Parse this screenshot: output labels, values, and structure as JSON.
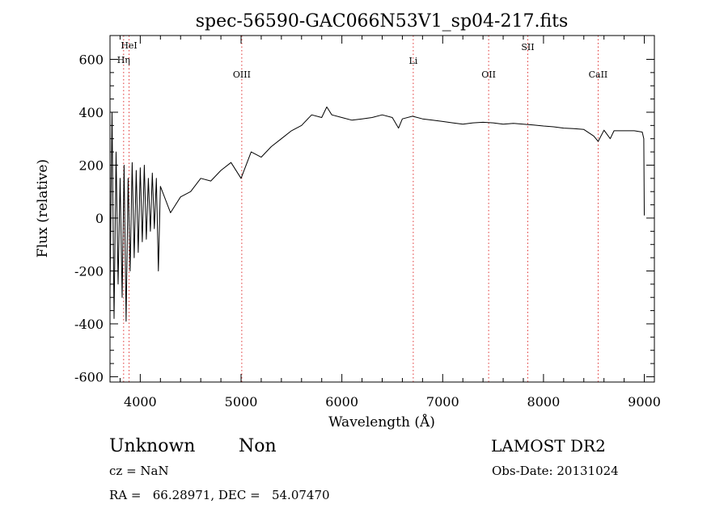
{
  "chart_data": {
    "type": "line",
    "title": "spec-56590-GAC066N53V1_sp04-217.fits",
    "xlabel": "Wavelength (Å)",
    "ylabel": "Flux (relative)",
    "xlim": [
      3700,
      9100
    ],
    "ylim": [
      -620,
      690
    ],
    "xticks": [
      4000,
      5000,
      6000,
      7000,
      8000,
      9000
    ],
    "yticks": [
      -600,
      -400,
      -200,
      0,
      200,
      400,
      600
    ],
    "grid": false,
    "series": [
      {
        "x": [
          3700,
          3720,
          3740,
          3760,
          3780,
          3800,
          3820,
          3840,
          3860,
          3880,
          3900,
          3920,
          3940,
          3960,
          3980,
          4000,
          4020,
          4040,
          4060,
          4080,
          4100,
          4120,
          4140,
          4160,
          4180,
          4200,
          4300,
          4400,
          4500,
          4600,
          4700,
          4800,
          4900,
          5000,
          5100,
          5200,
          5300,
          5400,
          5500,
          5600,
          5700,
          5800,
          5850,
          5900,
          6000,
          6100,
          6200,
          6300,
          6400,
          6500,
          6562,
          6600,
          6700,
          6800,
          6900,
          7000,
          7100,
          7200,
          7300,
          7400,
          7500,
          7600,
          7700,
          7800,
          7900,
          8000,
          8100,
          8200,
          8300,
          8400,
          8498,
          8542,
          8600,
          8662,
          8700,
          8800,
          8900,
          8980,
          8995,
          9000
        ],
        "y": [
          -280,
          400,
          -380,
          250,
          -250,
          150,
          -300,
          200,
          -390,
          150,
          -200,
          210,
          -150,
          180,
          -130,
          190,
          -90,
          200,
          -80,
          150,
          -50,
          170,
          -40,
          150,
          -200,
          120,
          20,
          80,
          100,
          150,
          140,
          180,
          210,
          150,
          250,
          230,
          270,
          300,
          330,
          350,
          390,
          380,
          420,
          390,
          380,
          370,
          375,
          380,
          390,
          380,
          340,
          375,
          385,
          375,
          370,
          365,
          360,
          355,
          360,
          362,
          360,
          355,
          358,
          355,
          352,
          348,
          345,
          340,
          338,
          335,
          310,
          290,
          332,
          300,
          330,
          330,
          330,
          325,
          300,
          10
        ]
      }
    ],
    "annotations": [
      {
        "label": "HeI",
        "x": 3889
      },
      {
        "label": "Hη",
        "x": 3835
      },
      {
        "label": "OIII",
        "x": 5007
      },
      {
        "label": "Li",
        "x": 6708
      },
      {
        "label": "OII",
        "x": 7456
      },
      {
        "label": "SII",
        "x": 7844
      },
      {
        "label": "CaII",
        "x": 8542
      }
    ],
    "line_color": "#000000",
    "marker_color": "#e03030"
  },
  "footer": {
    "object_class": "Unknown",
    "subclass": "Non",
    "survey": "LAMOST DR2",
    "redshift": "cz = NaN",
    "obs_date": "Obs-Date: 20131024",
    "coords": "RA =   66.28971, DEC =   54.07470"
  }
}
